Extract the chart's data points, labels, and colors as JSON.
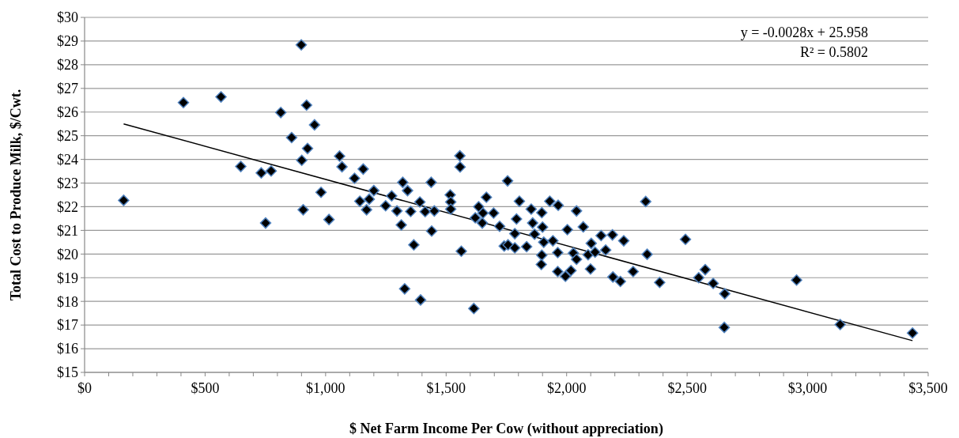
{
  "chart_data": {
    "type": "scatter",
    "xlabel": "$ Net Farm Income Per Cow (without appreciation)",
    "ylabel": "Total Cost to Produce Milk, $/Cwt.",
    "annotations": [
      "y = -0.0028x + 25.958",
      "R² = 0.5802"
    ],
    "grid": "y",
    "xlim": [
      0,
      3500
    ],
    "xticks": [
      {
        "value": 0,
        "label": "$0"
      },
      {
        "value": 100,
        "label": null
      },
      {
        "value": 200,
        "label": null
      },
      {
        "value": 300,
        "label": null
      },
      {
        "value": 400,
        "label": null
      },
      {
        "value": 500,
        "label": "$500"
      },
      {
        "value": 600,
        "label": null
      },
      {
        "value": 700,
        "label": null
      },
      {
        "value": 800,
        "label": null
      },
      {
        "value": 900,
        "label": null
      },
      {
        "value": 1000,
        "label": "$1,000"
      },
      {
        "value": 1100,
        "label": null
      },
      {
        "value": 1200,
        "label": null
      },
      {
        "value": 1300,
        "label": null
      },
      {
        "value": 1400,
        "label": null
      },
      {
        "value": 1500,
        "label": "$1,500"
      },
      {
        "value": 1600,
        "label": null
      },
      {
        "value": 1700,
        "label": null
      },
      {
        "value": 1800,
        "label": null
      },
      {
        "value": 1900,
        "label": null
      },
      {
        "value": 2000,
        "label": "$2,000"
      },
      {
        "value": 2100,
        "label": null
      },
      {
        "value": 2200,
        "label": null
      },
      {
        "value": 2300,
        "label": null
      },
      {
        "value": 2400,
        "label": null
      },
      {
        "value": 2500,
        "label": "$2,500"
      },
      {
        "value": 2600,
        "label": null
      },
      {
        "value": 2700,
        "label": null
      },
      {
        "value": 2800,
        "label": null
      },
      {
        "value": 2900,
        "label": null
      },
      {
        "value": 3000,
        "label": "$3,000"
      },
      {
        "value": 3100,
        "label": null
      },
      {
        "value": 3200,
        "label": null
      },
      {
        "value": 3300,
        "label": null
      },
      {
        "value": 3400,
        "label": null
      },
      {
        "value": 3500,
        "label": "$3,500"
      }
    ],
    "ylim": [
      15,
      30
    ],
    "yticks": [
      {
        "value": 15,
        "label": "$15"
      },
      {
        "value": 16,
        "label": "$16"
      },
      {
        "value": 17,
        "label": "$17"
      },
      {
        "value": 18,
        "label": "$18"
      },
      {
        "value": 19,
        "label": "$19"
      },
      {
        "value": 20,
        "label": "$20"
      },
      {
        "value": 21,
        "label": "$21"
      },
      {
        "value": 22,
        "label": "$22"
      },
      {
        "value": 23,
        "label": "$23"
      },
      {
        "value": 24,
        "label": "$24"
      },
      {
        "value": 25,
        "label": "$25"
      },
      {
        "value": 26,
        "label": "$26"
      },
      {
        "value": 27,
        "label": "$27"
      },
      {
        "value": 28,
        "label": "$28"
      },
      {
        "value": 29,
        "label": "$29"
      },
      {
        "value": 30,
        "label": "$30"
      }
    ],
    "series": [
      {
        "marker": "diamond",
        "color": "#000000",
        "x": [
          162,
          410,
          566,
          648,
          733,
          774,
          751,
          814,
          859,
          899,
          921,
          954,
          925,
          901,
          907,
          981,
          1014,
          1058,
          1068,
          1120,
          1156,
          1200,
          1142,
          1181,
          1170,
          1249,
          1274,
          1296,
          1314,
          1320,
          1340,
          1328,
          1353,
          1391,
          1413,
          1438,
          1451,
          1440,
          1366,
          1394,
          1517,
          1519,
          1519,
          1557,
          1558,
          1563,
          1615,
          1621,
          1635,
          1653,
          1667,
          1650,
          1697,
          1722,
          1755,
          1741,
          1757,
          1785,
          1785,
          1792,
          1804,
          1834,
          1853,
          1859,
          1867,
          1897,
          1900,
          1897,
          1895,
          1905,
          1930,
          1965,
          1943,
          1963,
          1963,
          1995,
          2018,
          2003,
          2028,
          2041,
          2041,
          2069,
          2089,
          2102,
          2099,
          2118,
          2143,
          2162,
          2190,
          2192,
          2223,
          2237,
          2276,
          2328,
          2334,
          2386,
          2493,
          2548,
          2575,
          2608,
          2656,
          2654,
          2954,
          3135,
          3435
        ],
        "values": [
          22.27,
          26.4,
          26.64,
          23.7,
          23.43,
          23.51,
          21.31,
          25.98,
          24.92,
          28.84,
          26.29,
          25.46,
          24.46,
          23.96,
          21.87,
          22.61,
          21.46,
          24.14,
          23.69,
          23.2,
          23.59,
          22.68,
          22.23,
          22.32,
          21.87,
          22.04,
          22.46,
          21.82,
          21.23,
          23.03,
          22.68,
          18.53,
          21.8,
          22.2,
          21.79,
          23.03,
          21.82,
          20.97,
          20.39,
          18.06,
          22.5,
          22.2,
          21.9,
          24.15,
          23.68,
          20.12,
          17.7,
          21.53,
          22.0,
          21.73,
          22.4,
          21.31,
          21.73,
          21.17,
          23.09,
          20.34,
          20.39,
          20.26,
          20.86,
          21.48,
          22.23,
          20.31,
          21.9,
          21.31,
          20.84,
          21.75,
          21.14,
          19.95,
          19.56,
          20.5,
          22.23,
          22.06,
          20.56,
          20.06,
          19.26,
          19.06,
          19.3,
          21.03,
          20.04,
          19.78,
          21.82,
          21.15,
          19.97,
          20.45,
          19.37,
          20.08,
          20.78,
          20.17,
          20.81,
          19.03,
          18.84,
          20.56,
          19.26,
          22.22,
          19.99,
          18.8,
          20.62,
          19.0,
          19.34,
          18.76,
          18.32,
          16.9,
          18.9,
          17.02,
          16.66
        ]
      },
      {
        "type": "line",
        "marker": "none",
        "color": "#000000",
        "x": [
          162,
          3435
        ],
        "values": [
          25.5,
          16.34
        ]
      }
    ]
  }
}
